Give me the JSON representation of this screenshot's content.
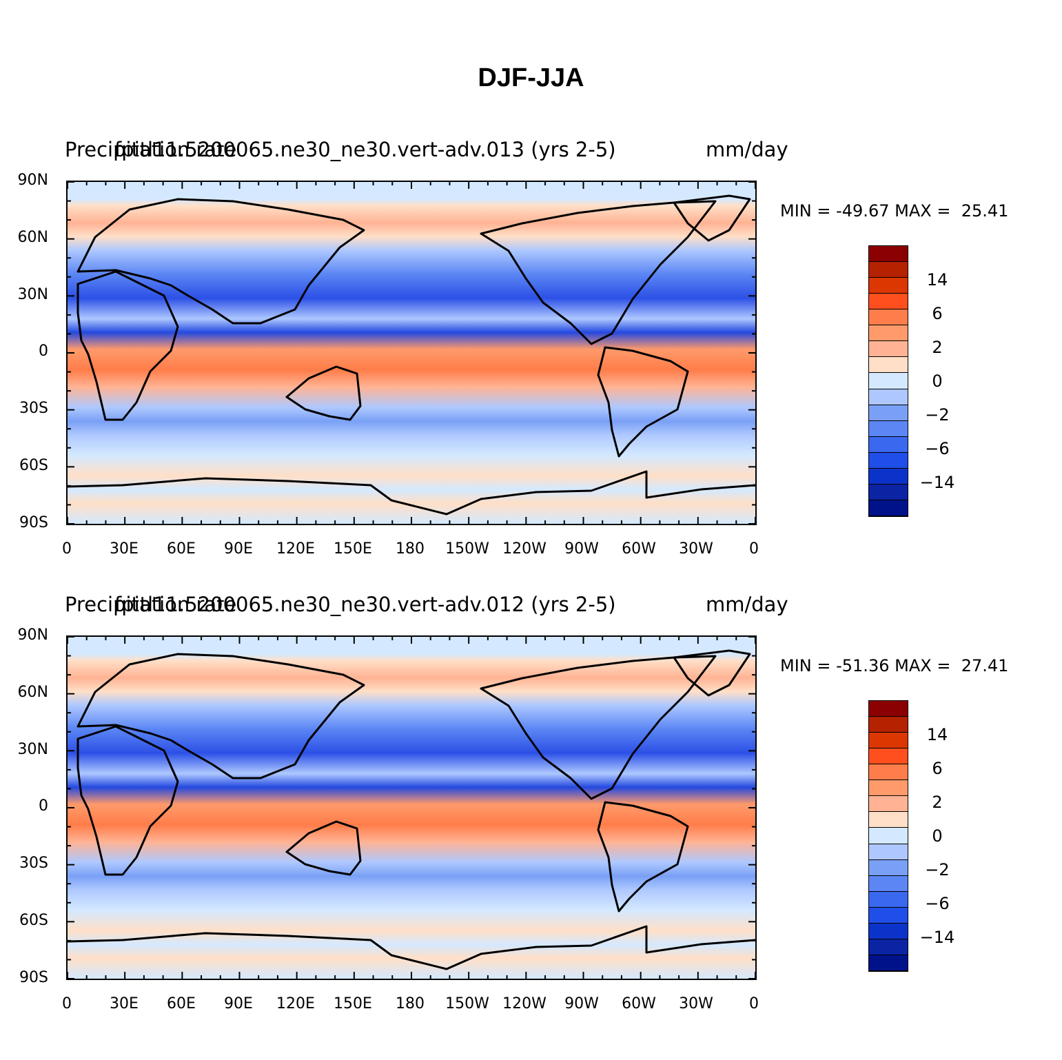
{
  "figure": {
    "title": "DJF-JJA"
  },
  "panels": [
    {
      "left_title": "Precipitation rate",
      "center_title": "fpitl11.5200065.ne30_ne30.vert-adv.013 (yrs  2-5)",
      "right_title": "mm/day",
      "min_label": "MIN = ",
      "min_value": "-49.67",
      "max_label": "MAX = ",
      "max_value": "25.41"
    },
    {
      "left_title": "Precipitation rate",
      "center_title": "fpitl11.5200065.ne30_ne30.vert-adv.012 (yrs  2-5)",
      "right_title": "mm/day",
      "min_label": "MIN = ",
      "min_value": "-51.36",
      "max_label": "MAX = ",
      "max_value": "27.41"
    }
  ],
  "axes": {
    "lat_labels": [
      "90N",
      "60N",
      "30N",
      "0",
      "30S",
      "60S",
      "90S"
    ],
    "lon_labels": [
      "0",
      "30E",
      "60E",
      "90E",
      "120E",
      "150E",
      "180",
      "150W",
      "120W",
      "90W",
      "60W",
      "30W",
      "0"
    ]
  },
  "colorbar": {
    "colors": [
      "#8b0000",
      "#b52200",
      "#dc3700",
      "#ff4f1e",
      "#ff7d4a",
      "#ff9a6a",
      "#ffb394",
      "#ffdfc7",
      "#d4e9ff",
      "#aec8ff",
      "#7aa0f6",
      "#5b86f4",
      "#3a68ee",
      "#1f4fe8",
      "#0c33c9",
      "#0a24a3",
      "#00128a"
    ],
    "tick_labels": [
      "14",
      "6",
      "2",
      "0",
      "−2",
      "−6",
      "−14"
    ]
  }
}
